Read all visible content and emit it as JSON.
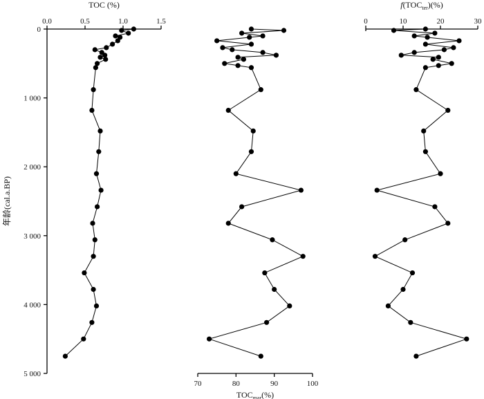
{
  "chart_data": {
    "type": "scatter",
    "y_axis": {
      "label": "年龄(cal.a.BP)",
      "ticks": [
        "0",
        "1 000",
        "2 000",
        "3 000",
        "4 000",
        "5 000"
      ],
      "tick_values": [
        0,
        1000,
        2000,
        3000,
        4000,
        5000
      ],
      "ylim": [
        0,
        5000
      ],
      "inverted": true
    },
    "panels": [
      {
        "name": "toc",
        "xlabel": "TOC (%)",
        "xlabel_position": "top",
        "xlim": [
          0,
          1.5
        ],
        "ticks": [
          "0.0",
          "0.5",
          "1.0",
          "1.5"
        ],
        "tick_values": [
          0,
          0.5,
          1.0,
          1.5
        ],
        "points": [
          {
            "x": 1.14,
            "y": 0
          },
          {
            "x": 0.98,
            "y": 20
          },
          {
            "x": 1.07,
            "y": 60
          },
          {
            "x": 0.9,
            "y": 100
          },
          {
            "x": 0.96,
            "y": 120
          },
          {
            "x": 0.93,
            "y": 170
          },
          {
            "x": 0.86,
            "y": 220
          },
          {
            "x": 0.78,
            "y": 270
          },
          {
            "x": 0.63,
            "y": 300
          },
          {
            "x": 0.72,
            "y": 340
          },
          {
            "x": 0.76,
            "y": 380
          },
          {
            "x": 0.7,
            "y": 410
          },
          {
            "x": 0.77,
            "y": 440
          },
          {
            "x": 0.66,
            "y": 500
          },
          {
            "x": 0.64,
            "y": 560
          },
          {
            "x": 0.61,
            "y": 880
          },
          {
            "x": 0.59,
            "y": 1180
          },
          {
            "x": 0.7,
            "y": 1480
          },
          {
            "x": 0.68,
            "y": 1780
          },
          {
            "x": 0.65,
            "y": 2100
          },
          {
            "x": 0.71,
            "y": 2340
          },
          {
            "x": 0.66,
            "y": 2580
          },
          {
            "x": 0.6,
            "y": 2820
          },
          {
            "x": 0.63,
            "y": 3060
          },
          {
            "x": 0.61,
            "y": 3300
          },
          {
            "x": 0.49,
            "y": 3540
          },
          {
            "x": 0.61,
            "y": 3780
          },
          {
            "x": 0.65,
            "y": 4020
          },
          {
            "x": 0.59,
            "y": 4260
          },
          {
            "x": 0.48,
            "y": 4500
          },
          {
            "x": 0.24,
            "y": 4750
          }
        ]
      },
      {
        "name": "toc_mar",
        "xlabel_parts": [
          "TOC",
          "mar",
          "(%)"
        ],
        "xlabel_position": "bottom",
        "xlim": [
          70,
          100
        ],
        "ticks": [
          "70",
          "80",
          "90",
          "100"
        ],
        "tick_values": [
          70,
          80,
          90,
          100
        ],
        "points": [
          {
            "x": 84,
            "y": 0
          },
          {
            "x": 92.5,
            "y": 20
          },
          {
            "x": 81.5,
            "y": 60
          },
          {
            "x": 87,
            "y": 100
          },
          {
            "x": 83.5,
            "y": 120
          },
          {
            "x": 75,
            "y": 170
          },
          {
            "x": 84,
            "y": 220
          },
          {
            "x": 76.5,
            "y": 270
          },
          {
            "x": 79,
            "y": 300
          },
          {
            "x": 87,
            "y": 340
          },
          {
            "x": 90.5,
            "y": 380
          },
          {
            "x": 80.5,
            "y": 410
          },
          {
            "x": 82,
            "y": 440
          },
          {
            "x": 77,
            "y": 500
          },
          {
            "x": 80.5,
            "y": 530
          },
          {
            "x": 84,
            "y": 560
          },
          {
            "x": 86.5,
            "y": 880
          },
          {
            "x": 78,
            "y": 1180
          },
          {
            "x": 84.5,
            "y": 1480
          },
          {
            "x": 84,
            "y": 1780
          },
          {
            "x": 80,
            "y": 2100
          },
          {
            "x": 97,
            "y": 2340
          },
          {
            "x": 81.5,
            "y": 2580
          },
          {
            "x": 78,
            "y": 2820
          },
          {
            "x": 89.5,
            "y": 3060
          },
          {
            "x": 97.5,
            "y": 3300
          },
          {
            "x": 87.5,
            "y": 3540
          },
          {
            "x": 90,
            "y": 3780
          },
          {
            "x": 94,
            "y": 4020
          },
          {
            "x": 88,
            "y": 4260
          },
          {
            "x": 73,
            "y": 4500
          },
          {
            "x": 86.5,
            "y": 4750
          }
        ]
      },
      {
        "name": "f_toc_ter",
        "xlabel_parts": [
          "f",
          "(TOC",
          "ter",
          ")(%)"
        ],
        "xlabel_position": "top",
        "xlim": [
          0,
          30
        ],
        "ticks": [
          "0",
          "10",
          "20",
          "30"
        ],
        "tick_values": [
          0,
          10,
          20,
          30
        ],
        "points": [
          {
            "x": 16,
            "y": 0
          },
          {
            "x": 7.5,
            "y": 20
          },
          {
            "x": 18.5,
            "y": 60
          },
          {
            "x": 13,
            "y": 100
          },
          {
            "x": 16.5,
            "y": 120
          },
          {
            "x": 25,
            "y": 170
          },
          {
            "x": 16,
            "y": 220
          },
          {
            "x": 23.5,
            "y": 270
          },
          {
            "x": 21,
            "y": 300
          },
          {
            "x": 13,
            "y": 340
          },
          {
            "x": 9.5,
            "y": 380
          },
          {
            "x": 19.5,
            "y": 410
          },
          {
            "x": 18,
            "y": 440
          },
          {
            "x": 23,
            "y": 500
          },
          {
            "x": 19.5,
            "y": 530
          },
          {
            "x": 16,
            "y": 560
          },
          {
            "x": 13.5,
            "y": 880
          },
          {
            "x": 22,
            "y": 1180
          },
          {
            "x": 15.5,
            "y": 1480
          },
          {
            "x": 16,
            "y": 1780
          },
          {
            "x": 20,
            "y": 2100
          },
          {
            "x": 3,
            "y": 2340
          },
          {
            "x": 18.5,
            "y": 2580
          },
          {
            "x": 22,
            "y": 2820
          },
          {
            "x": 10.5,
            "y": 3060
          },
          {
            "x": 2.5,
            "y": 3300
          },
          {
            "x": 12.5,
            "y": 3540
          },
          {
            "x": 10,
            "y": 3780
          },
          {
            "x": 6,
            "y": 4020
          },
          {
            "x": 12,
            "y": 4260
          },
          {
            "x": 27,
            "y": 4500
          },
          {
            "x": 13.5,
            "y": 4750
          }
        ]
      }
    ]
  }
}
